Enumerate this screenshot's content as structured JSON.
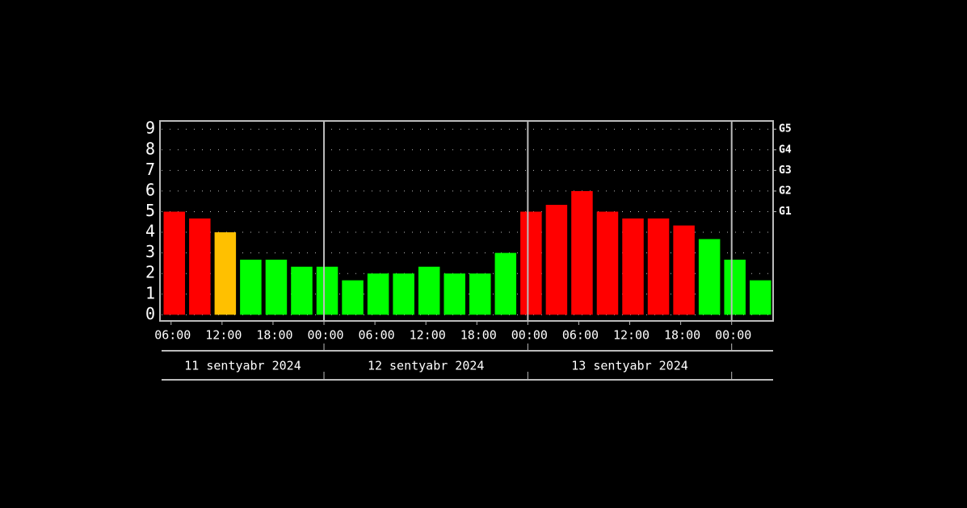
{
  "chart_data": {
    "type": "bar",
    "categories": [
      "06:00",
      null,
      "12:00",
      null,
      "18:00",
      null,
      "00:00",
      null,
      "06:00",
      null,
      "12:00",
      null,
      "18:00",
      null,
      "00:00",
      null,
      "06:00",
      null,
      "12:00",
      null,
      "18:00",
      null,
      "00:00",
      null
    ],
    "values": [
      5,
      4.67,
      4,
      2.67,
      2.67,
      2.33,
      2.33,
      1.67,
      2,
      2,
      2.33,
      2,
      2,
      3,
      5,
      5.33,
      6,
      5,
      4.67,
      4.67,
      4.33,
      3.67,
      2.67,
      1.67
    ],
    "colors": [
      "#ff0000",
      "#ff0000",
      "#ffc000",
      "#00ff00",
      "#00ff00",
      "#00ff00",
      "#00ff00",
      "#00ff00",
      "#00ff00",
      "#00ff00",
      "#00ff00",
      "#00ff00",
      "#00ff00",
      "#00ff00",
      "#ff0000",
      "#ff0000",
      "#ff0000",
      "#ff0000",
      "#ff0000",
      "#ff0000",
      "#ff0000",
      "#00ff00",
      "#00ff00",
      "#00ff00"
    ],
    "ylim": [
      -0.3,
      9.4
    ],
    "yticks": [
      0,
      1,
      2,
      3,
      4,
      5,
      6,
      7,
      8,
      9
    ],
    "y2lim": [
      -0.3,
      9.4
    ],
    "y2ticks": [
      {
        "value": 5,
        "label": "G1"
      },
      {
        "value": 6,
        "label": "G2"
      },
      {
        "value": 7,
        "label": "G3"
      },
      {
        "value": 8,
        "label": "G4"
      },
      {
        "value": 9,
        "label": "G5"
      }
    ],
    "day_labels": [
      "11 sentyabr 2024",
      "12 sentyabr 2024",
      "13 sentyabr 2024"
    ],
    "grid": true
  }
}
